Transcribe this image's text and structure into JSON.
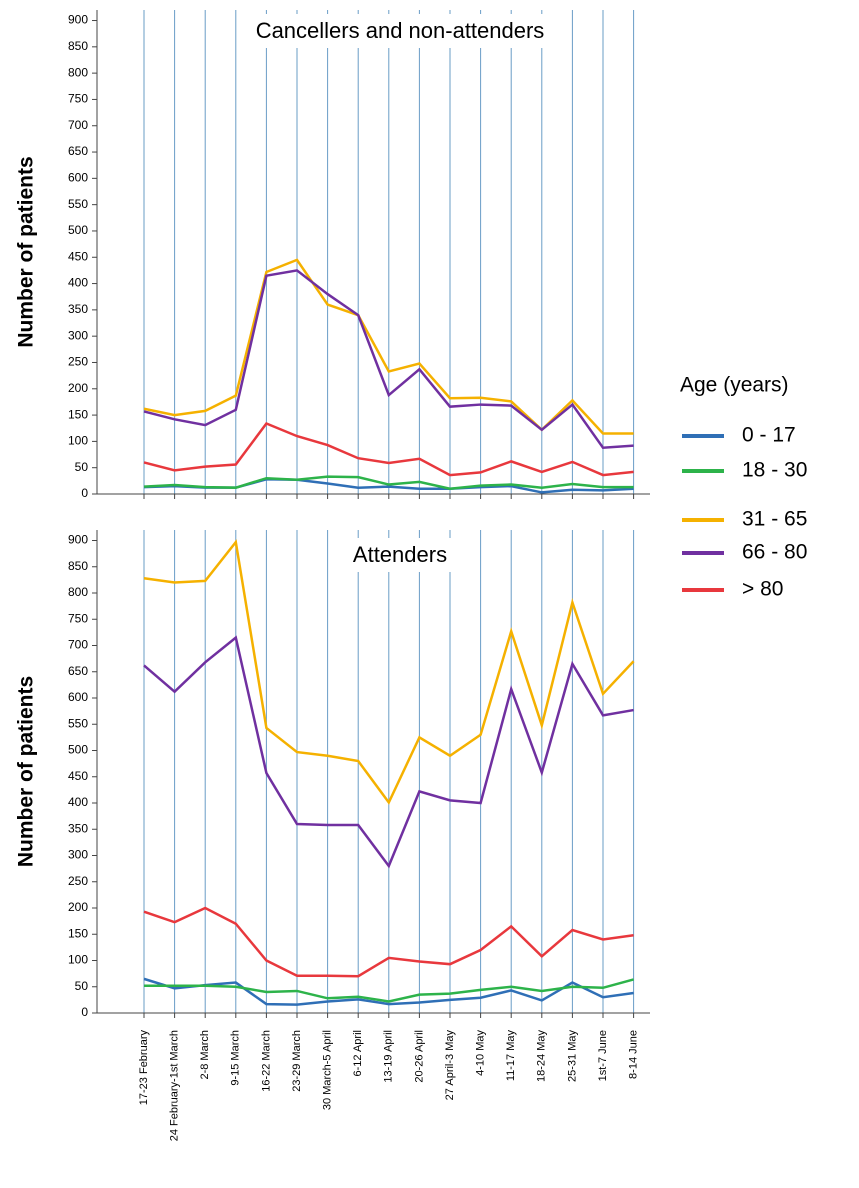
{
  "chart_data": [
    {
      "type": "line",
      "title": "Cancellers and non-attenders",
      "y_label": "Number of patients",
      "legend_title": "Age (years)",
      "ylim": [
        0,
        920
      ],
      "yticks": [
        0,
        50,
        100,
        150,
        200,
        250,
        300,
        350,
        400,
        450,
        500,
        550,
        600,
        650,
        700,
        750,
        800,
        850,
        900
      ],
      "xgrid": true,
      "series": [
        {
          "name": "0 - 17",
          "color": "#2f6fb6",
          "values": [
            13,
            15,
            12,
            12,
            28,
            27,
            20,
            12,
            14,
            10,
            10,
            13,
            15,
            3,
            8,
            7,
            10
          ]
        },
        {
          "name": "18 - 30",
          "color": "#2db34a",
          "values": [
            14,
            17,
            13,
            12,
            30,
            27,
            33,
            32,
            18,
            23,
            10,
            16,
            18,
            12,
            19,
            13,
            13
          ]
        },
        {
          "name": "31 - 65",
          "color": "#f5b100",
          "values": [
            162,
            150,
            158,
            187,
            422,
            445,
            360,
            340,
            233,
            248,
            182,
            183,
            176,
            122,
            178,
            115,
            115
          ]
        },
        {
          "name": "66 - 80",
          "color": "#7030a0",
          "values": [
            157,
            142,
            131,
            160,
            415,
            425,
            380,
            340,
            188,
            237,
            166,
            170,
            168,
            122,
            170,
            88,
            92
          ]
        },
        {
          "name": "> 80",
          "color": "#e8383d",
          "values": [
            60,
            45,
            52,
            56,
            134,
            110,
            93,
            68,
            59,
            67,
            36,
            41,
            62,
            42,
            61,
            36,
            42
          ]
        }
      ]
    },
    {
      "type": "line",
      "title": "Attenders",
      "y_label": "Number of patients",
      "categories": [
        "17-23 February",
        "24 February-1st March",
        "2-8 March",
        "9-15 March",
        "16-22 March",
        "23-29 March",
        "30 March-5 April",
        "6-12 April",
        "13-19 April",
        "20-26 April",
        "27 April-3 May",
        "4-10 May",
        "11-17 May",
        "18-24 May",
        "25-31 May",
        "1st-7 June",
        "8-14 June"
      ],
      "ylim": [
        0,
        920
      ],
      "yticks": [
        0,
        50,
        100,
        150,
        200,
        250,
        300,
        350,
        400,
        450,
        500,
        550,
        600,
        650,
        700,
        750,
        800,
        850,
        900
      ],
      "xgrid": true,
      "series": [
        {
          "color": "#2f6fb6",
          "values": [
            65,
            47,
            53,
            58,
            17,
            16,
            22,
            26,
            17,
            20,
            25,
            29,
            43,
            24,
            58,
            30,
            38
          ]
        },
        {
          "color": "#2db34a",
          "values": [
            52,
            52,
            52,
            50,
            40,
            42,
            28,
            31,
            22,
            35,
            37,
            44,
            50,
            42,
            50,
            48,
            64
          ]
        },
        {
          "color": "#f5b100",
          "values": [
            828,
            820,
            823,
            897,
            543,
            497,
            490,
            480,
            401,
            525,
            490,
            530,
            727,
            548,
            782,
            608,
            670
          ]
        },
        {
          "color": "#7030a0",
          "values": [
            662,
            612,
            668,
            715,
            457,
            360,
            358,
            358,
            280,
            422,
            405,
            400,
            617,
            458,
            665,
            567,
            577
          ]
        },
        {
          "color": "#e8383d",
          "values": [
            193,
            173,
            200,
            170,
            100,
            71,
            71,
            70,
            105,
            98,
            93,
            120,
            165,
            108,
            158,
            140,
            148
          ]
        }
      ]
    }
  ]
}
